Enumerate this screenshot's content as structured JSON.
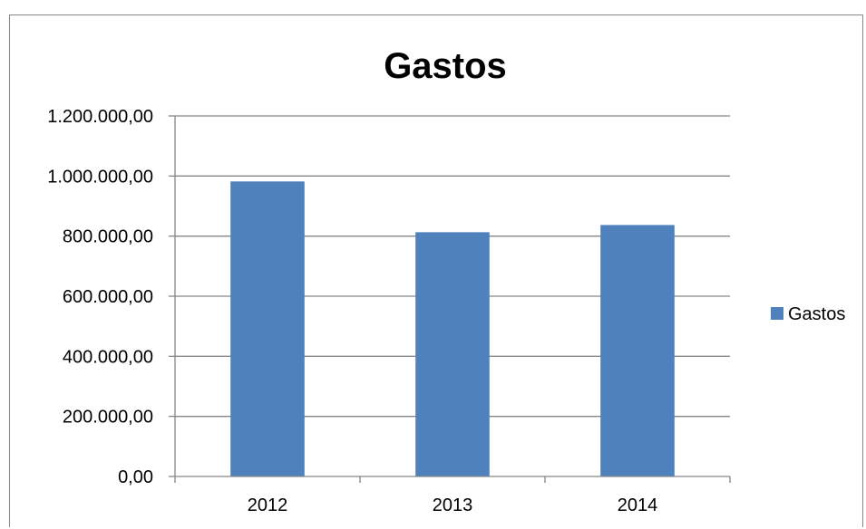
{
  "chart_data": {
    "type": "bar",
    "title": "Gastos",
    "categories": [
      "2012",
      "2013",
      "2014"
    ],
    "series": [
      {
        "name": "Gastos",
        "values": [
          982000,
          813000,
          837000
        ],
        "color": "#4F81BD"
      }
    ],
    "ylim": [
      0,
      1200000
    ],
    "yticks": [
      0,
      200000,
      400000,
      600000,
      800000,
      1000000,
      1200000
    ],
    "ytick_labels": [
      "0,00",
      "200.000,00",
      "400.000,00",
      "600.000,00",
      "800.000,00",
      "1.000.000,00",
      "1.200.000,00"
    ],
    "xlabel": "",
    "ylabel": "",
    "grid": true,
    "legend_position": "right",
    "gridline_color": "#868686"
  }
}
